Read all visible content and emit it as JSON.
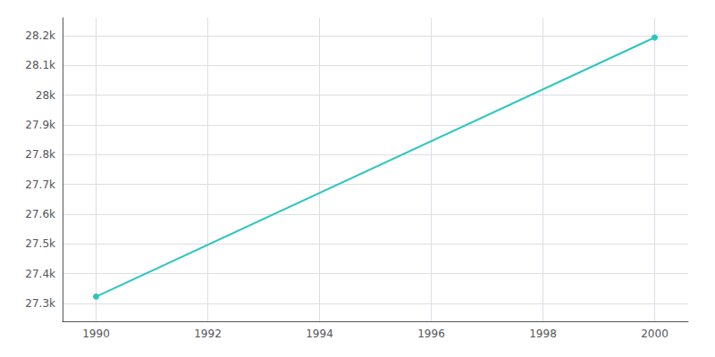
{
  "chart_data": {
    "type": "line",
    "x": [
      1990,
      2000
    ],
    "values": [
      27323,
      28194
    ],
    "color": "#2dc5bf",
    "xlim": [
      1989.4,
      2000.6
    ],
    "xticks": [
      1990,
      1992,
      1994,
      1996,
      1998,
      2000
    ],
    "ylim": [
      27240,
      28260
    ],
    "yticks": [
      {
        "value": 27300,
        "label": "27.3k"
      },
      {
        "value": 27400,
        "label": "27.4k"
      },
      {
        "value": 27500,
        "label": "27.5k"
      },
      {
        "value": 27600,
        "label": "27.6k"
      },
      {
        "value": 27700,
        "label": "27.7k"
      },
      {
        "value": 27800,
        "label": "27.8k"
      },
      {
        "value": 27900,
        "label": "27.9k"
      },
      {
        "value": 28000,
        "label": "28k"
      },
      {
        "value": 28100,
        "label": "28.1k"
      },
      {
        "value": 28200,
        "label": "28.2k"
      }
    ],
    "grid": true
  }
}
